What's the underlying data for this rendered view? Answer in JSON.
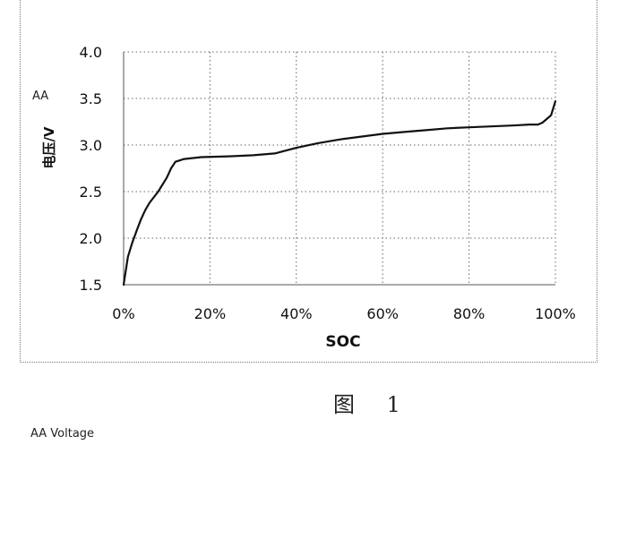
{
  "chart_data": {
    "type": "line",
    "title": "",
    "xlabel": "SOC",
    "ylabel": "电压/V",
    "xlim": [
      0,
      100
    ],
    "ylim": [
      1.5,
      4.0
    ],
    "x_ticks": [
      0,
      20,
      40,
      60,
      80,
      100
    ],
    "x_tick_labels": [
      "0%",
      "20%",
      "40%",
      "60%",
      "80%",
      "100%"
    ],
    "y_ticks": [
      1.5,
      2.0,
      2.5,
      3.0,
      3.5,
      4.0
    ],
    "y_tick_labels": [
      "1.5",
      "2.0",
      "2.5",
      "3.0",
      "3.5",
      "4.0"
    ],
    "grid": true,
    "series": [
      {
        "x": [
          0,
          0.5,
          1,
          2,
          3,
          4,
          5,
          6,
          8,
          10,
          11,
          12,
          14,
          18,
          25,
          30,
          35,
          40,
          45,
          50,
          55,
          60,
          65,
          70,
          75,
          80,
          85,
          90,
          94,
          96,
          97,
          98,
          99,
          100
        ],
        "y": [
          1.5,
          1.65,
          1.8,
          1.95,
          2.08,
          2.2,
          2.3,
          2.38,
          2.5,
          2.65,
          2.75,
          2.82,
          2.85,
          2.87,
          2.88,
          2.89,
          2.91,
          2.97,
          3.02,
          3.06,
          3.09,
          3.12,
          3.14,
          3.16,
          3.18,
          3.19,
          3.2,
          3.21,
          3.22,
          3.22,
          3.24,
          3.28,
          3.32,
          3.47
        ]
      }
    ],
    "color": "#111111"
  },
  "annotations": {
    "y_marker": "AA",
    "caption": "图 1",
    "footnote": "AA   Voltage"
  }
}
